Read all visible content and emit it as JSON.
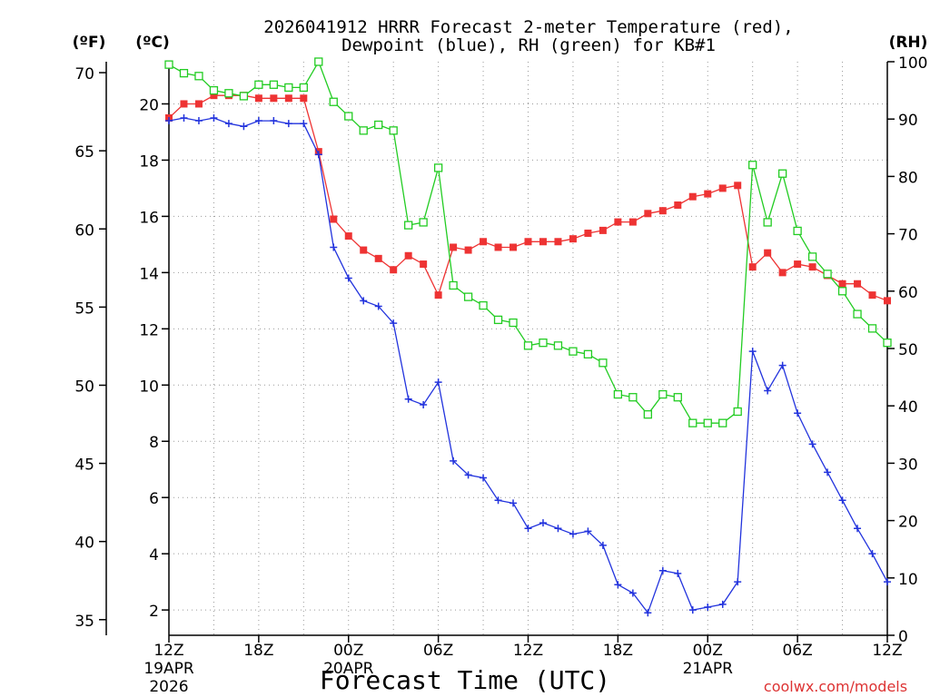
{
  "chart_data": {
    "type": "line",
    "title": "2026041912 HRRR Forecast 2-meter Temperature (red),",
    "subtitle": "Dewpoint (blue), RH (green) for KB#1",
    "xlabel": "Forecast Time (UTC)",
    "watermark": "coolwx.com/models",
    "unit_labels": {
      "fahrenheit": "(ºF)",
      "celsius": "(ºC)",
      "rh": "(RH)"
    },
    "x": [
      0,
      1,
      2,
      3,
      4,
      5,
      6,
      7,
      8,
      9,
      10,
      11,
      12,
      13,
      14,
      15,
      16,
      17,
      18,
      19,
      20,
      21,
      22,
      23,
      24,
      25,
      26,
      27,
      28,
      29,
      30,
      31,
      32,
      33,
      34,
      35,
      36,
      37,
      38,
      39,
      40,
      41,
      42,
      43,
      44,
      45,
      46,
      47,
      48
    ],
    "x_ticks": [
      {
        "hour": 0,
        "label": "12Z",
        "date": "19APR",
        "year": "2026"
      },
      {
        "hour": 6,
        "label": "18Z"
      },
      {
        "hour": 12,
        "label": "00Z",
        "date": "20APR"
      },
      {
        "hour": 18,
        "label": "06Z"
      },
      {
        "hour": 24,
        "label": "12Z"
      },
      {
        "hour": 30,
        "label": "18Z"
      },
      {
        "hour": 36,
        "label": "00Z",
        "date": "21APR"
      },
      {
        "hour": 42,
        "label": "06Z"
      },
      {
        "hour": 48,
        "label": "12Z"
      }
    ],
    "xlim": [
      0,
      48
    ],
    "ylim_c": [
      1.1,
      21.5
    ],
    "ylim_f": [
      34,
      70.7
    ],
    "ylim_rh": [
      0,
      100
    ],
    "yticks_c": [
      2,
      4,
      6,
      8,
      10,
      12,
      14,
      16,
      18,
      20
    ],
    "yticks_f": [
      35,
      40,
      45,
      50,
      55,
      60,
      65,
      70
    ],
    "yticks_rh": [
      0,
      10,
      20,
      30,
      40,
      50,
      60,
      70,
      80,
      90,
      100
    ],
    "grid": true,
    "series": [
      {
        "name": "Temperature",
        "color": "#ee3333",
        "marker": "filled-square",
        "axis": "celsius",
        "values": [
          19.5,
          20.0,
          20.0,
          20.3,
          20.3,
          20.3,
          20.2,
          20.2,
          20.2,
          20.2,
          18.3,
          15.9,
          15.3,
          14.8,
          14.5,
          14.1,
          14.6,
          14.3,
          13.2,
          14.9,
          14.8,
          15.1,
          14.9,
          14.9,
          15.1,
          15.1,
          15.1,
          15.2,
          15.4,
          15.5,
          15.8,
          15.8,
          16.1,
          16.2,
          16.4,
          16.7,
          16.8,
          17.0,
          17.1,
          14.2,
          14.7,
          14.0,
          14.3,
          14.2,
          13.9,
          13.6,
          13.6,
          13.2,
          13.0
        ]
      },
      {
        "name": "Dewpoint",
        "color": "#2233dd",
        "marker": "plus",
        "axis": "celsius",
        "values": [
          19.4,
          19.5,
          19.4,
          19.5,
          19.3,
          19.2,
          19.4,
          19.4,
          19.3,
          19.3,
          18.2,
          14.9,
          13.8,
          13.0,
          12.8,
          12.2,
          9.5,
          9.3,
          10.1,
          7.3,
          6.8,
          6.7,
          5.9,
          5.8,
          4.9,
          5.1,
          4.9,
          4.7,
          4.8,
          4.3,
          2.9,
          2.6,
          1.9,
          3.4,
          3.3,
          2.0,
          2.1,
          2.2,
          3.0,
          11.2,
          9.8,
          10.7,
          9.0,
          7.9,
          6.9,
          5.9,
          4.9,
          4.0,
          3.0
        ]
      },
      {
        "name": "RH",
        "color": "#22cc22",
        "marker": "open-square",
        "axis": "rh",
        "values": [
          99.5,
          98.0,
          97.5,
          95.0,
          94.5,
          94.0,
          96.0,
          96.0,
          95.5,
          95.5,
          100.0,
          93.0,
          90.5,
          88.0,
          89.0,
          88.0,
          71.5,
          72.0,
          81.5,
          61.0,
          59.0,
          57.5,
          55.0,
          54.5,
          50.5,
          51.0,
          50.5,
          49.5,
          49.0,
          47.5,
          42.0,
          41.5,
          38.5,
          42.0,
          41.5,
          37.0,
          37.0,
          37.0,
          39.0,
          82.0,
          72.0,
          80.5,
          70.5,
          66.0,
          63.0,
          60.0,
          56.0,
          53.5,
          51.0
        ]
      }
    ]
  }
}
